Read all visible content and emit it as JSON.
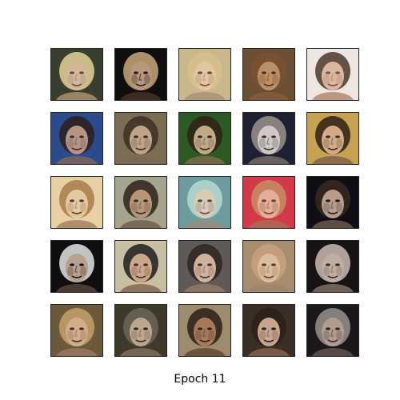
{
  "figure": {
    "caption": "Epoch 11",
    "rows": 5,
    "cols": 5
  },
  "samples": [
    {
      "bg": "#3a3f2e",
      "skin": "#e6c9a6",
      "hair": "#e8d59a",
      "shade": "#b99a79",
      "feature": "#6b4a3a"
    },
    {
      "bg": "#0f0f10",
      "skin": "#cfa98c",
      "hair": "#c9ad7a",
      "shade": "#4b3528",
      "feature": "#2a1a14"
    },
    {
      "bg": "#c9b98a",
      "skin": "#e8c8a2",
      "hair": "#d8c08c",
      "shade": "#a88c72",
      "feature": "#5a3c2c"
    },
    {
      "bg": "#6b4f34",
      "skin": "#c9986f",
      "hair": "#7a5133",
      "shade": "#8a5a3b",
      "feature": "#3a2a22"
    },
    {
      "bg": "#ede8e2",
      "skin": "#d9b19a",
      "hair": "#4a3428",
      "shade": "#a97e66",
      "feature": "#6a3d35"
    },
    {
      "bg": "#2d4a8f",
      "skin": "#c9a087",
      "hair": "#2c2018",
      "shade": "#8b6755",
      "feature": "#3b2920"
    },
    {
      "bg": "#7c6d55",
      "skin": "#c7ad92",
      "hair": "#3d3022",
      "shade": "#7d6a55",
      "feature": "#2c2118"
    },
    {
      "bg": "#2d5a22",
      "skin": "#d8b697",
      "hair": "#2e2218",
      "shade": "#8c6c55",
      "feature": "#2e1f18"
    },
    {
      "bg": "#1d2233",
      "skin": "#e8e1da",
      "hair": "#9e958d",
      "shade": "#7f7571",
      "feature": "#3a3432"
    },
    {
      "bg": "#c7a252",
      "skin": "#d3ae8e",
      "hair": "#2a1d16",
      "shade": "#7c5a45",
      "feature": "#2b1b15"
    },
    {
      "bg": "#e7d1a3",
      "skin": "#e6c8a3",
      "hair": "#a77a4a",
      "shade": "#9c775d",
      "feature": "#38261d"
    },
    {
      "bg": "#a7a48e",
      "skin": "#b89676",
      "hair": "#2a2219",
      "shade": "#6d5644",
      "feature": "#221914"
    },
    {
      "bg": "#6f9ba0",
      "skin": "#e6d2bf",
      "hair": "#b8dbd0",
      "shade": "#9b8a79",
      "feature": "#4c382c"
    },
    {
      "bg": "#d33a48",
      "skin": "#e4c1a4",
      "hair": "#c69064",
      "shade": "#a17355",
      "feature": "#5b3a2a"
    },
    {
      "bg": "#0f0e16",
      "skin": "#cdb19b",
      "hair": "#3b2a20",
      "shade": "#7a614f",
      "feature": "#231914"
    },
    {
      "bg": "#0e0e12",
      "skin": "#cdb5a1",
      "hair": "#e8e8e8",
      "shade": "#5c4a40",
      "feature": "#1c1514"
    },
    {
      "bg": "#c9c0a2",
      "skin": "#cfa487",
      "hair": "#1a1a1a",
      "shade": "#7b5a46",
      "feature": "#2a1b15"
    },
    {
      "bg": "#5f5a58",
      "skin": "#ddbfa6",
      "hair": "#2d2420",
      "shade": "#9a7c67",
      "feature": "#3a2a24"
    },
    {
      "bg": "#a78e6f",
      "skin": "#e3c3a3",
      "hair": "#caa27a",
      "shade": "#a0836a",
      "feature": "#4a3026"
    },
    {
      "bg": "#151416",
      "skin": "#d8c3b6",
      "hair": "#cdbfb3",
      "shade": "#8d7b71",
      "feature": "#3a2d29"
    },
    {
      "bg": "#6c5a3a",
      "skin": "#e0b996",
      "hair": "#c7a271",
      "shade": "#9f7b60",
      "feature": "#3b261d"
    },
    {
      "bg": "#3f3a29",
      "skin": "#cfb49d",
      "hair": "#6e6757",
      "shade": "#8b7362",
      "feature": "#2a2220"
    },
    {
      "bg": "#9d8b6e",
      "skin": "#a77757",
      "hair": "#2a1c16",
      "shade": "#5e3f30",
      "feature": "#1f1410"
    },
    {
      "bg": "#392f27",
      "skin": "#d9b59a",
      "hair": "#2b2019",
      "shade": "#8b6a54",
      "feature": "#2b1c17"
    },
    {
      "bg": "#1b1918",
      "skin": "#c5b0a0",
      "hair": "#9b9590",
      "shade": "#6b5b52",
      "feature": "#2d2522"
    }
  ]
}
